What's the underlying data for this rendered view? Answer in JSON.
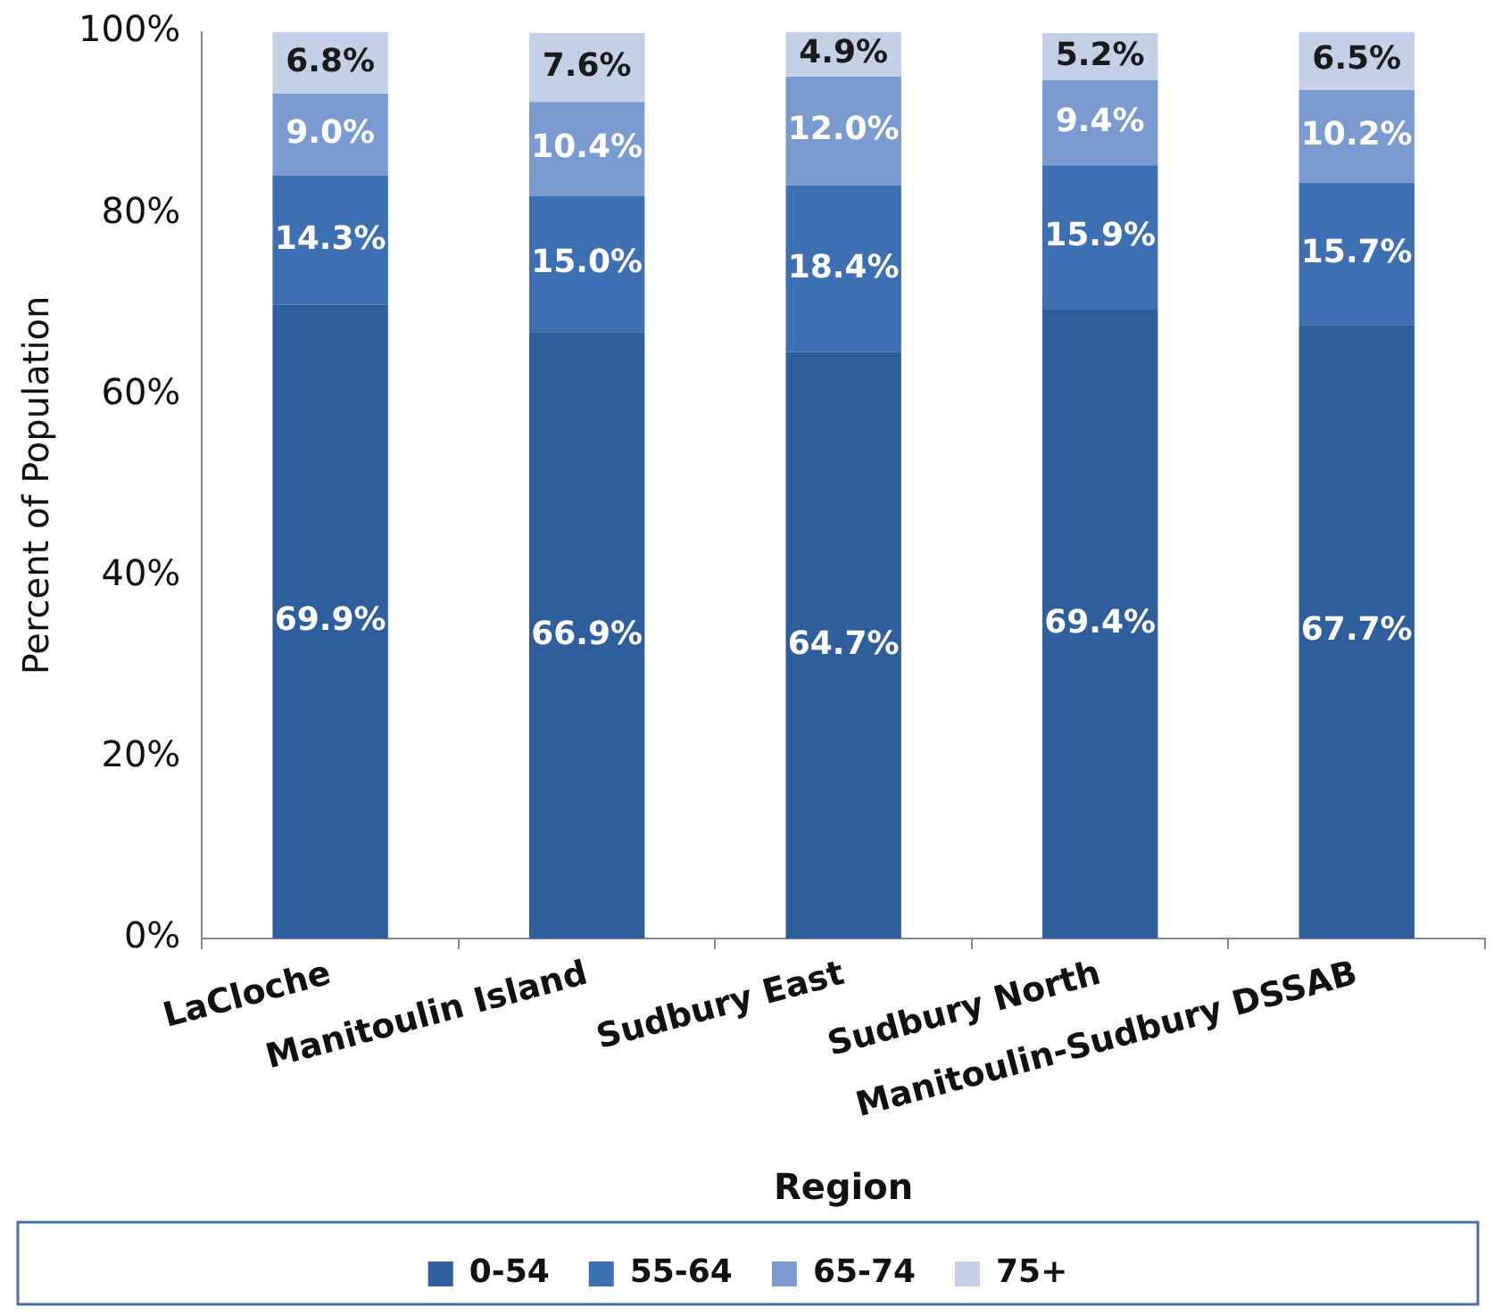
{
  "chart_data": {
    "type": "bar",
    "stacked": true,
    "xlabel": "Region",
    "ylabel": "Percent of Population",
    "categories": [
      "LaCloche",
      "Manitoulin Island",
      "Sudbury East",
      "Sudbury North",
      "Manitoulin-Sudbury DSSAB"
    ],
    "series": [
      {
        "name": "0-54",
        "color": "#2f5e9c",
        "values": [
          69.9,
          66.9,
          64.7,
          69.4,
          67.7
        ],
        "value_labels": [
          "69.9%",
          "66.9%",
          "64.7%",
          "69.4%",
          "67.7%"
        ]
      },
      {
        "name": "55-64",
        "color": "#3d6fb3",
        "values": [
          14.3,
          15.0,
          18.4,
          15.9,
          15.7
        ],
        "value_labels": [
          "14.3%",
          "15.0%",
          "18.4%",
          "15.9%",
          "15.7%"
        ]
      },
      {
        "name": "65-74",
        "color": "#7b9bd0",
        "values": [
          9.0,
          10.4,
          12.0,
          9.4,
          10.2
        ],
        "value_labels": [
          "9.0%",
          "10.4%",
          "12.0%",
          "9.4%",
          "10.2%"
        ]
      },
      {
        "name": "75+",
        "color": "#c4d0e6",
        "values": [
          6.8,
          7.6,
          4.9,
          5.2,
          6.5
        ],
        "value_labels": [
          "6.8%",
          "7.6%",
          "4.9%",
          "5.2%",
          "6.5%"
        ]
      }
    ],
    "ylim": [
      0,
      100
    ],
    "yticks": [
      {
        "value": 0,
        "label": "0%"
      },
      {
        "value": 20,
        "label": "20%"
      },
      {
        "value": 40,
        "label": "40%"
      },
      {
        "value": 60,
        "label": "60%"
      },
      {
        "value": 80,
        "label": "80%"
      },
      {
        "value": 100,
        "label": "100%"
      }
    ],
    "grid": false,
    "legend": "bottom"
  }
}
